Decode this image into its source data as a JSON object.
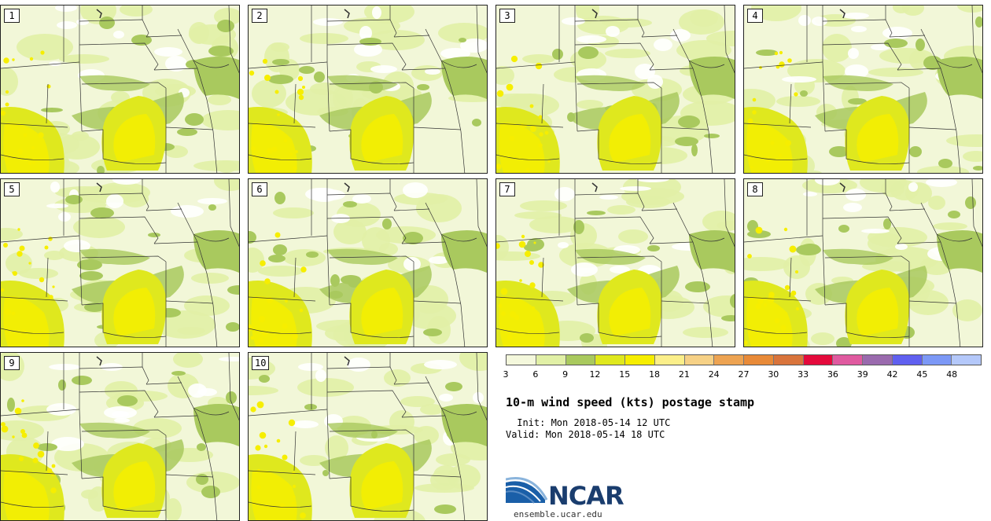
{
  "figure": {
    "title": "10-m wind speed (kts) postage stamp",
    "init": " Init: Mon 2018-05-14 12 UTC",
    "valid": "Valid: Mon 2018-05-14 18 UTC"
  },
  "members": [
    "1",
    "2",
    "3",
    "4",
    "5",
    "6",
    "7",
    "8",
    "9",
    "10"
  ],
  "colorbar": {
    "colors": [
      "#f4f8dc",
      "#e1f0a6",
      "#a9c95e",
      "#dfe81e",
      "#f6ee00",
      "#fbef8a",
      "#f6d186",
      "#eda352",
      "#e88a38",
      "#d9743c",
      "#e40a3c",
      "#e05aa0",
      "#9a6aae",
      "#6060f0",
      "#7c98f6",
      "#b4c8fa"
    ],
    "tick_labels": [
      "3",
      "6",
      "9",
      "12",
      "15",
      "18",
      "21",
      "24",
      "27",
      "30",
      "33",
      "36",
      "39",
      "42",
      "45",
      "48"
    ]
  },
  "logo": {
    "name": "NCAR",
    "url": "ensemble.ucar.edu"
  }
}
